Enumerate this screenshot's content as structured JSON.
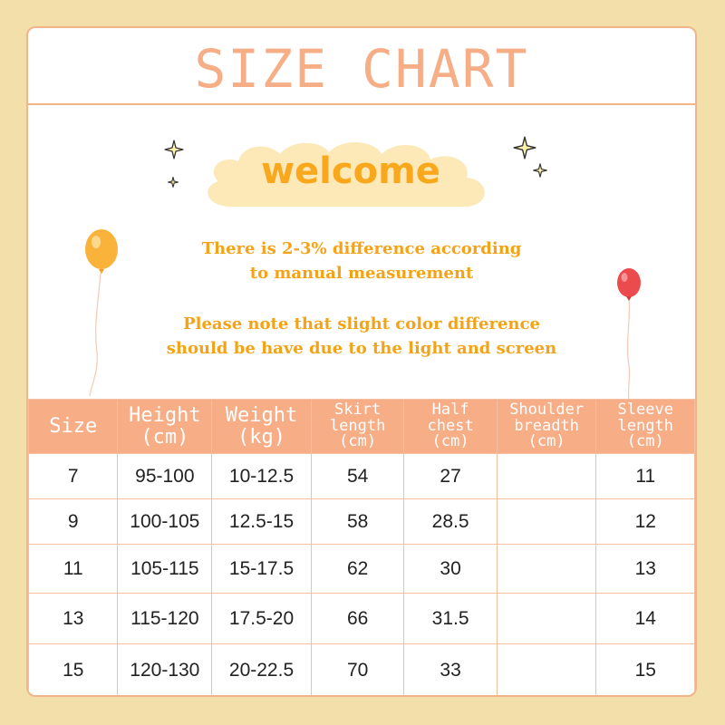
{
  "header": {
    "title": "SIZE CHART"
  },
  "banner": {
    "welcome": "welcome"
  },
  "notes": {
    "measurement": [
      "There is 2-3% difference according",
      "to manual measurement"
    ],
    "color": [
      "Please note that slight color difference",
      "should be have due to the light and screen"
    ]
  },
  "colors": {
    "background": "#f2dfa9",
    "accent": "#f7ad86",
    "note_text": "#f5a316",
    "welcome_text": "#f9a81d",
    "balloon_left": "#f9b33a",
    "balloon_right": "#ec4b4e"
  },
  "table": {
    "headers": [
      [
        "Size"
      ],
      [
        "Height",
        "(cm)"
      ],
      [
        "Weight",
        "(kg)"
      ],
      [
        "Skirt",
        "length",
        "(cm)"
      ],
      [
        "Half",
        "chest",
        "(cm)"
      ],
      [
        "Shoulder",
        "breadth",
        "(cm)"
      ],
      [
        "Sleeve",
        "length",
        "(cm)"
      ]
    ],
    "rows": [
      [
        "7",
        "95-100",
        "10-12.5",
        "54",
        "27",
        "",
        "11"
      ],
      [
        "9",
        "100-105",
        "12.5-15",
        "58",
        "28.5",
        "",
        "12"
      ],
      [
        "11",
        "105-115",
        "15-17.5",
        "62",
        "30",
        "",
        "13"
      ],
      [
        "13",
        "115-120",
        "17.5-20",
        "66",
        "31.5",
        "",
        "14"
      ],
      [
        "15",
        "120-130",
        "20-22.5",
        "70",
        "33",
        "",
        "15"
      ]
    ]
  },
  "icons": [
    "sparkle-icon",
    "balloon-icon",
    "cloud-shape"
  ]
}
